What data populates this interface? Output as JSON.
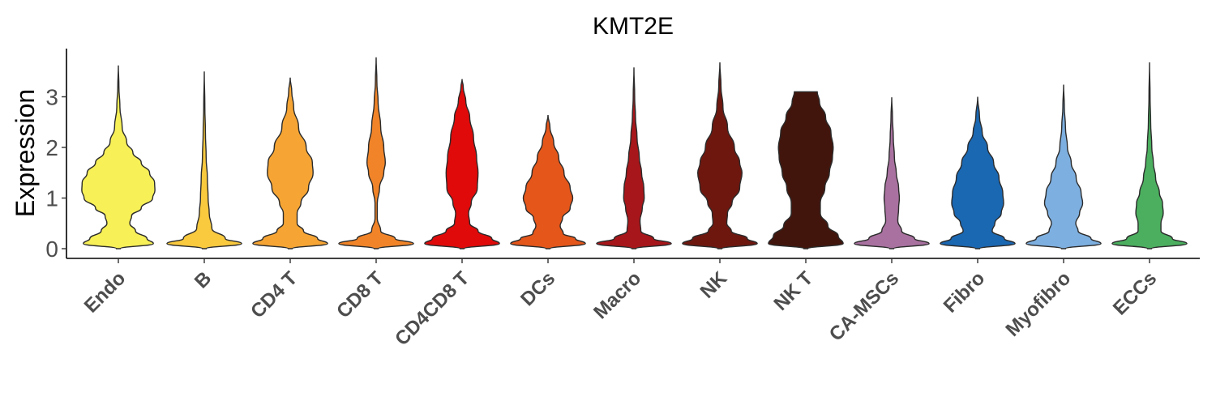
{
  "chart_data": {
    "type": "violin",
    "title": "KMT2E",
    "xlabel": "",
    "ylabel": "Expression",
    "ylim": [
      -0.2,
      3.9
    ],
    "yticks": [
      0,
      1,
      2,
      3
    ],
    "legend": "none",
    "grid": false,
    "categories": [
      "Endo",
      "B",
      "CD4 T",
      "CD8 T",
      "CD4CD8 T",
      "DCs",
      "Macro",
      "NK",
      "NK T",
      "CA-MSCs",
      "Fibro",
      "Myofibro",
      "ECCs"
    ],
    "series": [
      {
        "category": "Endo",
        "color": "#F7F057",
        "max": 3.62,
        "profile": [
          [
            0,
            0.05
          ],
          [
            0.1,
            0.92
          ],
          [
            0.2,
            0.75
          ],
          [
            0.35,
            0.45
          ],
          [
            0.5,
            0.3
          ],
          [
            0.65,
            0.35
          ],
          [
            0.8,
            0.6
          ],
          [
            1.0,
            0.9
          ],
          [
            1.15,
            0.96
          ],
          [
            1.3,
            0.95
          ],
          [
            1.5,
            0.82
          ],
          [
            1.7,
            0.6
          ],
          [
            1.9,
            0.38
          ],
          [
            2.1,
            0.22
          ],
          [
            2.4,
            0.1
          ],
          [
            2.8,
            0.04
          ],
          [
            3.2,
            0.015
          ],
          [
            3.62,
            0.0
          ]
        ]
      },
      {
        "category": "B",
        "color": "#F9C93E",
        "max": 3.5,
        "profile": [
          [
            0,
            0.05
          ],
          [
            0.1,
            0.98
          ],
          [
            0.2,
            0.55
          ],
          [
            0.4,
            0.2
          ],
          [
            0.7,
            0.13
          ],
          [
            1.0,
            0.1
          ],
          [
            1.4,
            0.08
          ],
          [
            1.8,
            0.05
          ],
          [
            2.3,
            0.03
          ],
          [
            2.8,
            0.015
          ],
          [
            3.5,
            0.0
          ]
        ]
      },
      {
        "category": "CD4 T",
        "color": "#F6A534",
        "max": 3.38,
        "profile": [
          [
            0,
            0.05
          ],
          [
            0.1,
            0.98
          ],
          [
            0.2,
            0.72
          ],
          [
            0.35,
            0.35
          ],
          [
            0.5,
            0.18
          ],
          [
            0.7,
            0.18
          ],
          [
            0.9,
            0.28
          ],
          [
            1.2,
            0.48
          ],
          [
            1.5,
            0.6
          ],
          [
            1.7,
            0.58
          ],
          [
            2.0,
            0.42
          ],
          [
            2.4,
            0.22
          ],
          [
            2.8,
            0.09
          ],
          [
            3.1,
            0.04
          ],
          [
            3.38,
            0.0
          ]
        ]
      },
      {
        "category": "CD8 T",
        "color": "#F18428",
        "max": 3.78,
        "profile": [
          [
            0,
            0.05
          ],
          [
            0.1,
            0.98
          ],
          [
            0.2,
            0.5
          ],
          [
            0.35,
            0.12
          ],
          [
            0.6,
            0.03
          ],
          [
            0.9,
            0.03
          ],
          [
            1.2,
            0.09
          ],
          [
            1.5,
            0.2
          ],
          [
            1.7,
            0.24
          ],
          [
            2.0,
            0.2
          ],
          [
            2.4,
            0.12
          ],
          [
            2.9,
            0.05
          ],
          [
            3.3,
            0.02
          ],
          [
            3.78,
            0.0
          ]
        ]
      },
      {
        "category": "CD4CD8 T",
        "color": "#E00A0A",
        "max": 3.35,
        "profile": [
          [
            0,
            0.05
          ],
          [
            0.1,
            0.98
          ],
          [
            0.2,
            0.78
          ],
          [
            0.35,
            0.42
          ],
          [
            0.5,
            0.2
          ],
          [
            0.7,
            0.17
          ],
          [
            0.9,
            0.24
          ],
          [
            1.2,
            0.4
          ],
          [
            1.5,
            0.42
          ],
          [
            1.8,
            0.38
          ],
          [
            2.2,
            0.3
          ],
          [
            2.6,
            0.2
          ],
          [
            2.9,
            0.1
          ],
          [
            3.2,
            0.03
          ],
          [
            3.35,
            0.0
          ]
        ]
      },
      {
        "category": "DCs",
        "color": "#E4561A",
        "max": 2.64,
        "profile": [
          [
            0,
            0.05
          ],
          [
            0.1,
            0.98
          ],
          [
            0.2,
            0.72
          ],
          [
            0.3,
            0.4
          ],
          [
            0.45,
            0.32
          ],
          [
            0.6,
            0.38
          ],
          [
            0.8,
            0.58
          ],
          [
            1.0,
            0.65
          ],
          [
            1.2,
            0.58
          ],
          [
            1.5,
            0.42
          ],
          [
            1.8,
            0.28
          ],
          [
            2.1,
            0.15
          ],
          [
            2.4,
            0.05
          ],
          [
            2.64,
            0.0
          ]
        ]
      },
      {
        "category": "Macro",
        "color": "#A7161A",
        "max": 3.58,
        "profile": [
          [
            0,
            0.05
          ],
          [
            0.1,
            0.98
          ],
          [
            0.2,
            0.52
          ],
          [
            0.35,
            0.18
          ],
          [
            0.55,
            0.16
          ],
          [
            0.8,
            0.22
          ],
          [
            1.0,
            0.27
          ],
          [
            1.2,
            0.26
          ],
          [
            1.5,
            0.2
          ],
          [
            1.8,
            0.14
          ],
          [
            2.2,
            0.08
          ],
          [
            2.6,
            0.04
          ],
          [
            3.0,
            0.02
          ],
          [
            3.58,
            0.0
          ]
        ]
      },
      {
        "category": "NK",
        "color": "#6E170F",
        "max": 3.68,
        "profile": [
          [
            0,
            0.05
          ],
          [
            0.1,
            0.98
          ],
          [
            0.2,
            0.72
          ],
          [
            0.35,
            0.3
          ],
          [
            0.5,
            0.18
          ],
          [
            0.7,
            0.2
          ],
          [
            0.9,
            0.32
          ],
          [
            1.2,
            0.52
          ],
          [
            1.5,
            0.58
          ],
          [
            1.7,
            0.52
          ],
          [
            2.0,
            0.38
          ],
          [
            2.4,
            0.2
          ],
          [
            2.8,
            0.08
          ],
          [
            3.2,
            0.03
          ],
          [
            3.68,
            0.0
          ]
        ]
      },
      {
        "category": "NK T",
        "color": "#42150C",
        "max": 3.1,
        "profile": [
          [
            0,
            0.05
          ],
          [
            0.1,
            0.98
          ],
          [
            0.25,
            0.85
          ],
          [
            0.45,
            0.58
          ],
          [
            0.7,
            0.38
          ],
          [
            0.9,
            0.38
          ],
          [
            1.2,
            0.5
          ],
          [
            1.5,
            0.62
          ],
          [
            1.8,
            0.7
          ],
          [
            2.0,
            0.72
          ],
          [
            2.3,
            0.66
          ],
          [
            2.6,
            0.52
          ],
          [
            2.9,
            0.36
          ],
          [
            3.1,
            0.3
          ]
        ]
      },
      {
        "category": "CA-MSCs",
        "color": "#A8719F",
        "max": 2.99,
        "profile": [
          [
            0,
            0.05
          ],
          [
            0.1,
            0.98
          ],
          [
            0.2,
            0.6
          ],
          [
            0.35,
            0.26
          ],
          [
            0.55,
            0.16
          ],
          [
            0.8,
            0.18
          ],
          [
            1.0,
            0.2
          ],
          [
            1.2,
            0.18
          ],
          [
            1.5,
            0.12
          ],
          [
            1.8,
            0.07
          ],
          [
            2.2,
            0.04
          ],
          [
            2.6,
            0.02
          ],
          [
            2.99,
            0.0
          ]
        ]
      },
      {
        "category": "Fibro",
        "color": "#1A67B2",
        "max": 3.0,
        "profile": [
          [
            0,
            0.05
          ],
          [
            0.1,
            0.98
          ],
          [
            0.2,
            0.7
          ],
          [
            0.35,
            0.38
          ],
          [
            0.5,
            0.45
          ],
          [
            0.7,
            0.62
          ],
          [
            0.9,
            0.68
          ],
          [
            1.1,
            0.66
          ],
          [
            1.4,
            0.56
          ],
          [
            1.7,
            0.42
          ],
          [
            2.0,
            0.26
          ],
          [
            2.3,
            0.12
          ],
          [
            2.6,
            0.05
          ],
          [
            3.0,
            0.0
          ]
        ]
      },
      {
        "category": "Myofibro",
        "color": "#7DAFE0",
        "max": 3.24,
        "profile": [
          [
            0,
            0.05
          ],
          [
            0.1,
            0.98
          ],
          [
            0.2,
            0.72
          ],
          [
            0.35,
            0.38
          ],
          [
            0.5,
            0.32
          ],
          [
            0.7,
            0.42
          ],
          [
            0.9,
            0.5
          ],
          [
            1.1,
            0.46
          ],
          [
            1.4,
            0.33
          ],
          [
            1.7,
            0.2
          ],
          [
            2.0,
            0.1
          ],
          [
            2.4,
            0.05
          ],
          [
            2.8,
            0.02
          ],
          [
            3.24,
            0.0
          ]
        ]
      },
      {
        "category": "ECCs",
        "color": "#4BAF5F",
        "max": 3.68,
        "profile": [
          [
            0,
            0.05
          ],
          [
            0.1,
            0.98
          ],
          [
            0.2,
            0.6
          ],
          [
            0.35,
            0.3
          ],
          [
            0.5,
            0.3
          ],
          [
            0.7,
            0.36
          ],
          [
            0.9,
            0.34
          ],
          [
            1.1,
            0.26
          ],
          [
            1.4,
            0.16
          ],
          [
            1.7,
            0.1
          ],
          [
            2.0,
            0.06
          ],
          [
            2.5,
            0.03
          ],
          [
            3.0,
            0.015
          ],
          [
            3.68,
            0.0
          ]
        ]
      }
    ]
  }
}
